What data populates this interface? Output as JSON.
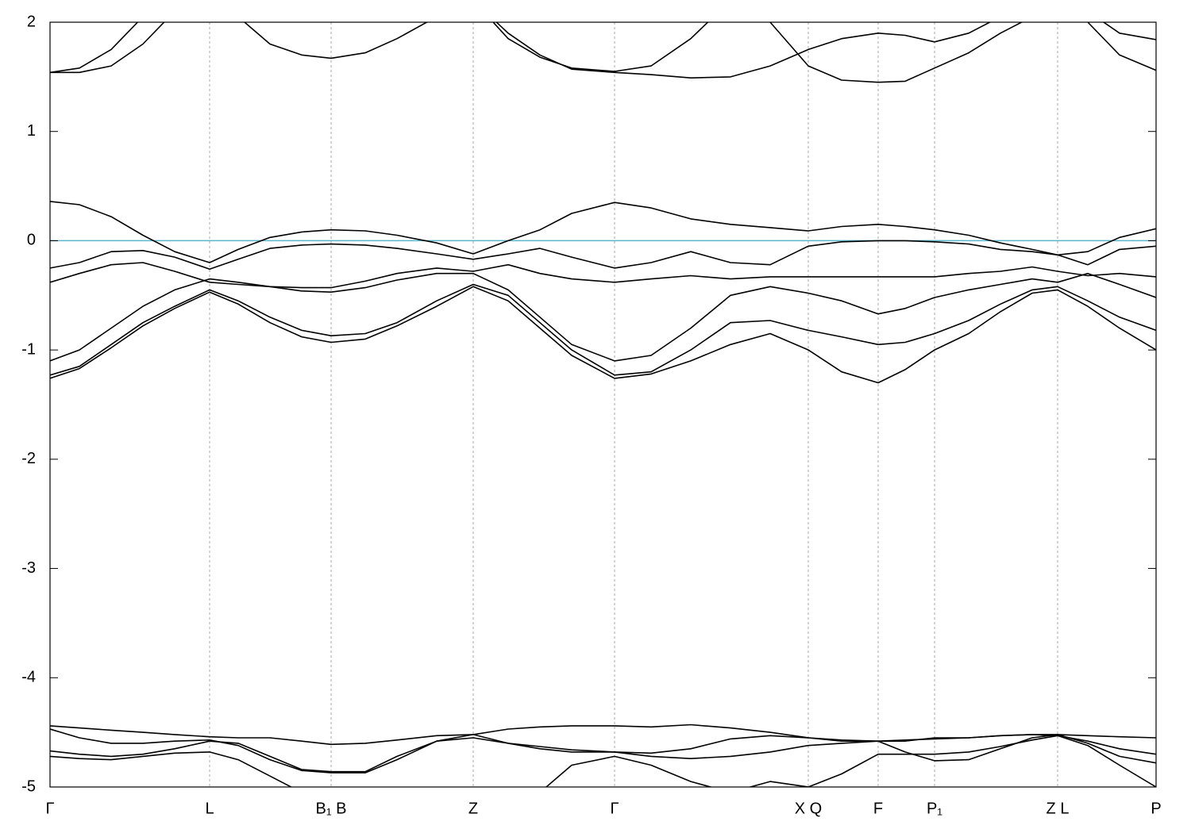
{
  "chart_data": {
    "type": "line",
    "color": "#000000",
    "fermi_level": 0,
    "fermi_color": "#5ab4c8",
    "xlim": [
      0,
      13.93
    ],
    "ylim": [
      -5,
      2
    ],
    "yticks": [
      -5,
      -4,
      -3,
      -2,
      -1,
      0,
      1,
      2
    ],
    "xticks": [
      {
        "value": 0,
        "label": "Γ"
      },
      {
        "value": 2.01,
        "label": "L"
      },
      {
        "value": 3.54,
        "label": "B₁ B"
      },
      {
        "value": 5.33,
        "label": "Z"
      },
      {
        "value": 7.11,
        "label": "Γ"
      },
      {
        "value": 9.55,
        "label": "X Q"
      },
      {
        "value": 10.43,
        "label": "F"
      },
      {
        "value": 11.14,
        "label": "P₁"
      },
      {
        "value": 12.69,
        "label": "Z L"
      },
      {
        "value": 13.93,
        "label": "P"
      }
    ],
    "grid": true,
    "x": [
      0,
      0.37,
      0.77,
      1.17,
      1.57,
      2.01,
      2.37,
      2.77,
      3.17,
      3.54,
      3.97,
      4.37,
      4.87,
      5.33,
      5.77,
      6.17,
      6.57,
      7.11,
      7.57,
      8.07,
      8.57,
      9.07,
      9.55,
      9.97,
      10.43,
      10.77,
      11.14,
      11.57,
      11.97,
      12.37,
      12.69,
      13.07,
      13.47,
      13.93
    ],
    "series": [
      {
        "values": [
          0.36,
          0.33,
          0.22,
          0.05,
          -0.1,
          -0.2,
          -0.08,
          0.03,
          0.08,
          0.1,
          0.09,
          0.05,
          -0.02,
          -0.12,
          0.0,
          0.1,
          0.25,
          0.35,
          0.3,
          0.2,
          0.15,
          0.12,
          0.09,
          0.13,
          0.15,
          0.13,
          0.1,
          0.05,
          -0.02,
          -0.08,
          -0.13,
          -0.1,
          0.03,
          0.11
        ]
      },
      {
        "values": [
          -0.25,
          -0.2,
          -0.1,
          -0.09,
          -0.15,
          -0.26,
          -0.17,
          -0.07,
          -0.04,
          -0.03,
          -0.04,
          -0.07,
          -0.12,
          -0.17,
          -0.12,
          -0.07,
          -0.15,
          -0.25,
          -0.2,
          -0.1,
          -0.2,
          -0.22,
          -0.05,
          -0.01,
          0.0,
          0.0,
          -0.01,
          -0.03,
          -0.08,
          -0.1,
          -0.13,
          -0.22,
          -0.08,
          -0.05
        ]
      },
      {
        "values": [
          -0.38,
          -0.3,
          -0.22,
          -0.2,
          -0.28,
          -0.38,
          -0.4,
          -0.42,
          -0.43,
          -0.43,
          -0.37,
          -0.3,
          -0.25,
          -0.28,
          -0.22,
          -0.3,
          -0.35,
          -0.38,
          -0.35,
          -0.32,
          -0.35,
          -0.33,
          -0.33,
          -0.33,
          -0.33,
          -0.33,
          -0.33,
          -0.3,
          -0.28,
          -0.24,
          -0.28,
          -0.32,
          -0.3,
          -0.33
        ]
      },
      {
        "values": [
          -1.1,
          -1.0,
          -0.8,
          -0.6,
          -0.45,
          -0.35,
          -0.38,
          -0.42,
          -0.46,
          -0.47,
          -0.43,
          -0.36,
          -0.3,
          -0.3,
          -0.45,
          -0.7,
          -0.95,
          -1.1,
          -1.05,
          -0.8,
          -0.5,
          -0.42,
          -0.48,
          -0.55,
          -0.67,
          -0.62,
          -0.52,
          -0.45,
          -0.4,
          -0.35,
          -0.38,
          -0.3,
          -0.4,
          -0.52
        ]
      },
      {
        "values": [
          -1.23,
          -1.15,
          -0.95,
          -0.75,
          -0.6,
          -0.45,
          -0.55,
          -0.7,
          -0.82,
          -0.87,
          -0.85,
          -0.75,
          -0.55,
          -0.4,
          -0.5,
          -0.75,
          -1.0,
          -1.23,
          -1.2,
          -1.0,
          -0.75,
          -0.73,
          -0.82,
          -0.88,
          -0.95,
          -0.93,
          -0.85,
          -0.73,
          -0.58,
          -0.45,
          -0.42,
          -0.55,
          -0.7,
          -0.82
        ]
      },
      {
        "values": [
          -1.26,
          -1.17,
          -0.98,
          -0.78,
          -0.62,
          -0.47,
          -0.58,
          -0.75,
          -0.88,
          -0.93,
          -0.9,
          -0.78,
          -0.6,
          -0.42,
          -0.55,
          -0.8,
          -1.05,
          -1.26,
          -1.22,
          -1.1,
          -0.95,
          -0.85,
          -1.0,
          -1.2,
          -1.3,
          -1.18,
          -1.0,
          -0.85,
          -0.65,
          -0.48,
          -0.45,
          -0.6,
          -0.8,
          -1.0
        ]
      },
      {
        "values": [
          1.54,
          1.54,
          1.6,
          1.8,
          2.1,
          2.3,
          2.05,
          1.8,
          1.7,
          1.67,
          1.72,
          1.85,
          2.05,
          2.2,
          1.9,
          1.7,
          1.57,
          1.54,
          1.52,
          1.49,
          1.5,
          1.6,
          1.75,
          1.85,
          1.9,
          1.88,
          1.82,
          1.9,
          2.05,
          2.2,
          2.3,
          2.1,
          1.9,
          1.84
        ]
      },
      {
        "values": [
          1.54,
          1.58,
          1.75,
          2.05,
          2.3,
          2.5,
          2.4,
          2.3,
          2.3,
          2.3,
          2.3,
          2.3,
          2.3,
          2.2,
          1.85,
          1.68,
          1.58,
          1.55,
          1.6,
          1.85,
          2.2,
          2.0,
          1.6,
          1.47,
          1.45,
          1.46,
          1.58,
          1.72,
          1.9,
          2.05,
          2.2,
          2.0,
          1.7,
          1.56
        ]
      },
      {
        "values": [
          -4.44,
          -4.46,
          -4.48,
          -4.5,
          -4.52,
          -4.54,
          -4.55,
          -4.55,
          -4.58,
          -4.61,
          -4.6,
          -4.57,
          -4.53,
          -4.52,
          -4.47,
          -4.45,
          -4.44,
          -4.44,
          -4.45,
          -4.43,
          -4.46,
          -4.5,
          -4.55,
          -4.57,
          -4.58,
          -4.57,
          -4.56,
          -4.55,
          -4.53,
          -4.52,
          -4.52,
          -4.53,
          -4.54,
          -4.55
        ]
      },
      {
        "values": [
          -4.47,
          -4.55,
          -4.6,
          -4.6,
          -4.58,
          -4.57,
          -4.62,
          -4.75,
          -4.85,
          -4.87,
          -4.87,
          -4.75,
          -4.58,
          -4.52,
          -4.6,
          -4.63,
          -4.66,
          -4.68,
          -4.72,
          -4.74,
          -4.72,
          -4.68,
          -4.62,
          -4.6,
          -4.58,
          -4.68,
          -4.76,
          -4.75,
          -4.65,
          -4.55,
          -4.52,
          -4.6,
          -4.72,
          -4.78
        ]
      },
      {
        "values": [
          -4.67,
          -4.7,
          -4.72,
          -4.7,
          -4.65,
          -4.58,
          -4.6,
          -4.72,
          -4.84,
          -4.86,
          -4.86,
          -4.72,
          -4.58,
          -4.55,
          -4.6,
          -4.65,
          -4.68,
          -4.68,
          -4.69,
          -4.65,
          -4.56,
          -4.53,
          -4.55,
          -4.58,
          -4.58,
          -4.58,
          -4.55,
          -4.55,
          -4.53,
          -4.52,
          -4.53,
          -4.58,
          -4.65,
          -4.7
        ]
      },
      {
        "values": [
          -4.72,
          -4.74,
          -4.75,
          -4.72,
          -4.69,
          -4.68,
          -4.75,
          -4.9,
          -5.05,
          -5.2,
          -5.3,
          -5.3,
          -5.2,
          -5.1,
          -5.1,
          -5.05,
          -4.8,
          -4.72,
          -4.8,
          -4.95,
          -5.05,
          -4.95,
          -5.0,
          -4.88,
          -4.7,
          -4.7,
          -4.7,
          -4.68,
          -4.63,
          -4.57,
          -4.53,
          -4.62,
          -4.8,
          -5.0
        ]
      }
    ]
  }
}
